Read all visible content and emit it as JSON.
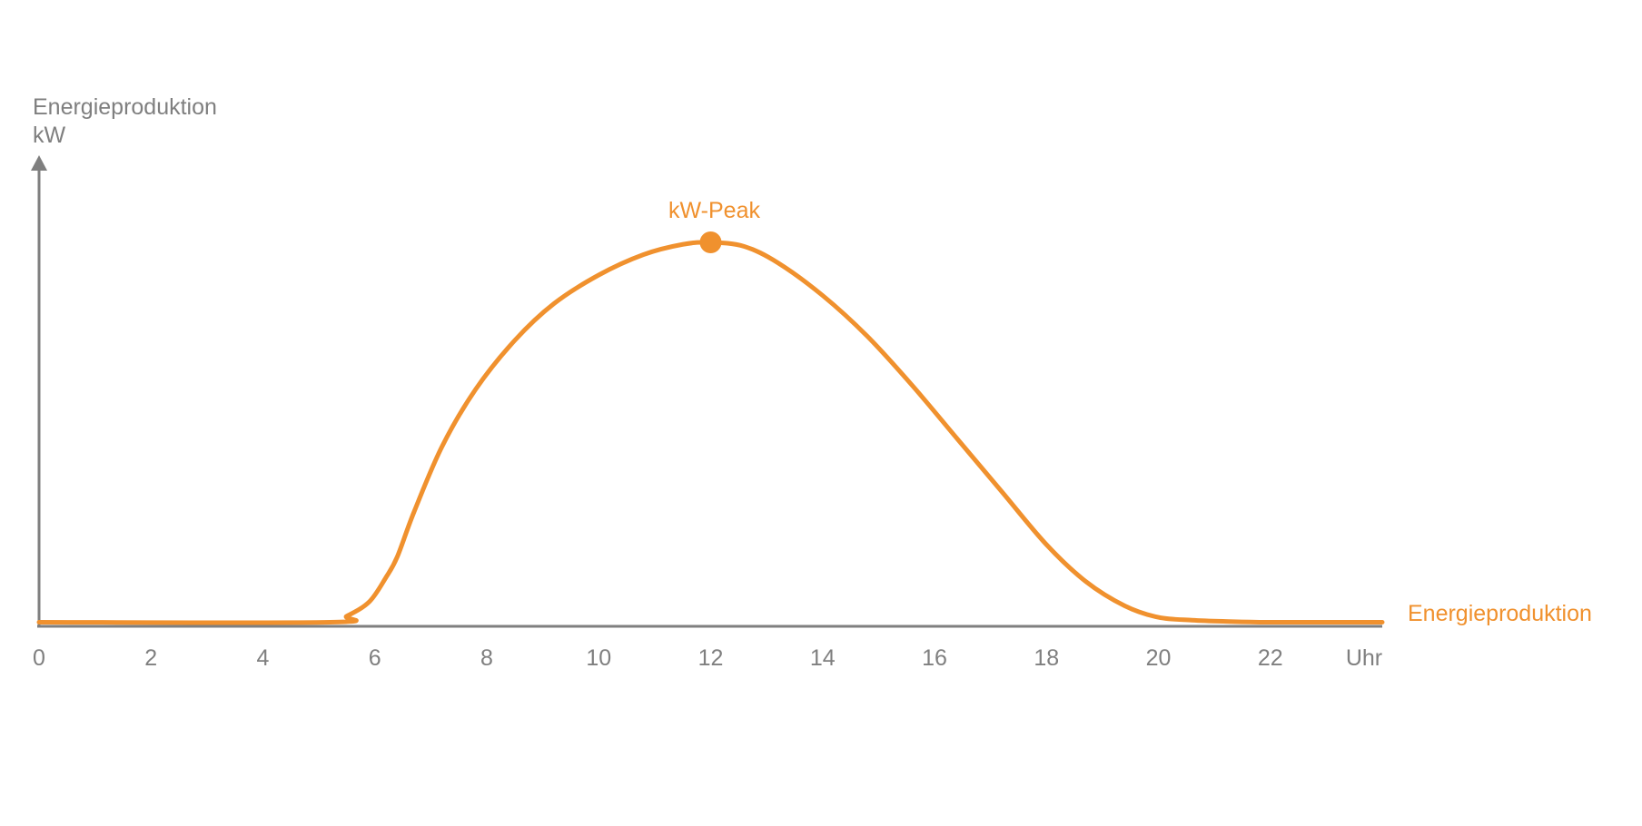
{
  "chart_data": {
    "type": "line",
    "ylabel": [
      "Energieproduktion",
      "kW"
    ],
    "xlabel": "Uhr",
    "x_ticks": [
      "0",
      "2",
      "4",
      "6",
      "8",
      "10",
      "12",
      "14",
      "16",
      "18",
      "20",
      "22"
    ],
    "xlim": [
      0,
      24
    ],
    "ylim": [
      0,
      1
    ],
    "series": [
      {
        "name": "Energieproduktion",
        "color": "#f0912e",
        "x": [
          0,
          5.2,
          5.5,
          5.9,
          6.2,
          6.4,
          6.7,
          7.2,
          7.8,
          8.5,
          9.2,
          10,
          10.8,
          11.5,
          12,
          12.6,
          13.2,
          14,
          14.8,
          15.6,
          16.4,
          17.2,
          18,
          18.7,
          19.4,
          20,
          20.6,
          21.2,
          22,
          24
        ],
        "y": [
          0.01,
          0.01,
          0.025,
          0.06,
          0.12,
          0.17,
          0.28,
          0.44,
          0.58,
          0.7,
          0.79,
          0.86,
          0.91,
          0.935,
          0.94,
          0.93,
          0.89,
          0.81,
          0.71,
          0.59,
          0.46,
          0.33,
          0.2,
          0.11,
          0.05,
          0.022,
          0.015,
          0.012,
          0.01,
          0.01
        ]
      }
    ],
    "annotations": [
      {
        "text": "kW-Peak",
        "x": 12,
        "y": 0.94
      }
    ],
    "grid": false,
    "legend": "right"
  },
  "colors": {
    "axis": "#7f7f7f",
    "series": "#f0912e"
  }
}
